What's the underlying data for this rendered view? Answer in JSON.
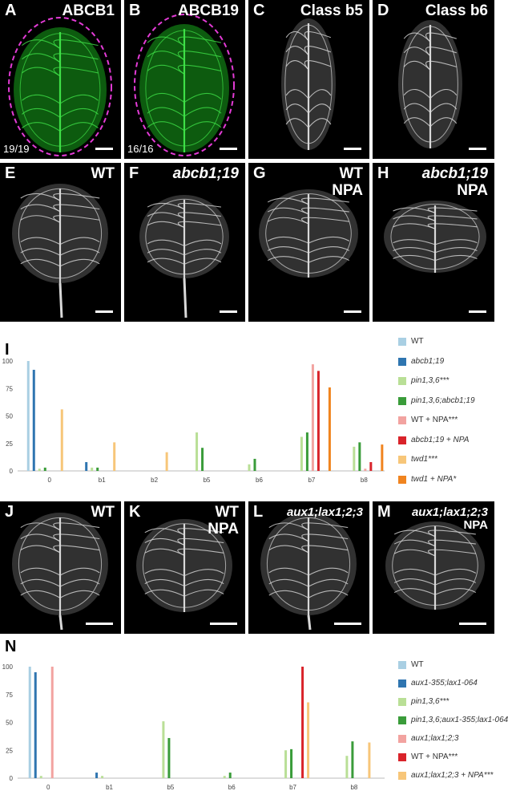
{
  "panels": [
    {
      "key": "A",
      "label": "A",
      "title": "ABCB1",
      "count": "19/19",
      "kind": "green"
    },
    {
      "key": "B",
      "label": "B",
      "title": "ABCB19",
      "count": "16/16",
      "kind": "green"
    },
    {
      "key": "C",
      "label": "C",
      "title": "Class b5",
      "kind": "gray"
    },
    {
      "key": "D",
      "label": "D",
      "title": "Class b6",
      "kind": "gray"
    },
    {
      "key": "E",
      "label": "E",
      "title": "WT",
      "kind": "gray"
    },
    {
      "key": "F",
      "label": "F",
      "title": "abcb1;19",
      "kind": "gray"
    },
    {
      "key": "G",
      "label": "G",
      "title": "WT",
      "title2": "NPA",
      "kind": "gray"
    },
    {
      "key": "H",
      "label": "H",
      "title": "abcb1;19",
      "title2": "NPA",
      "kind": "gray"
    },
    {
      "key": "J",
      "label": "J",
      "title": "WT",
      "kind": "gray"
    },
    {
      "key": "K",
      "label": "K",
      "title": "WT",
      "title2": "NPA",
      "kind": "gray"
    },
    {
      "key": "L",
      "label": "L",
      "title": "aux1;lax1;2;3",
      "kind": "gray"
    },
    {
      "key": "M",
      "label": "M",
      "title": "aux1;lax1;2;3",
      "title2": "NPA",
      "kind": "gray"
    }
  ],
  "chart_labels": {
    "I": "I",
    "N": "N"
  },
  "chart_data": [
    {
      "type": "bar",
      "categories": [
        "0",
        "b1",
        "b2",
        "b5",
        "b6",
        "b7",
        "b8"
      ],
      "yticks": [
        "0",
        "25",
        "50",
        "75",
        "100"
      ],
      "ylim": [
        0,
        100
      ],
      "series": [
        {
          "name": "WT",
          "color": "#a9cfe3",
          "values": [
            100,
            0,
            0,
            0,
            0,
            0,
            0
          ]
        },
        {
          "name": "abcb1;19",
          "color": "#2f75b0",
          "values": [
            92,
            8,
            0,
            0,
            0,
            0,
            0
          ]
        },
        {
          "name": "pin1,3,6***",
          "color": "#b9df96",
          "values": [
            2,
            3,
            0,
            35,
            6,
            31,
            22
          ]
        },
        {
          "name": "pin1,3,6;abcb1;19",
          "color": "#3a9c3a",
          "values": [
            3,
            3,
            0,
            21,
            11,
            35,
            26
          ]
        },
        {
          "name": "WT + NPA***",
          "color": "#f2a3a0",
          "values": [
            0,
            0,
            0,
            0,
            0,
            97,
            2
          ]
        },
        {
          "name": "abcb1;19 + NPA",
          "color": "#d9232a",
          "values": [
            0,
            0,
            0,
            0,
            0,
            91,
            8
          ]
        },
        {
          "name": "twd1***",
          "color": "#f7c679",
          "values": [
            56,
            26,
            17,
            0,
            0,
            0,
            0
          ]
        },
        {
          "name": "twd1 + NPA*",
          "color": "#f0841f",
          "values": [
            0,
            0,
            0,
            0,
            0,
            76,
            24
          ]
        }
      ]
    },
    {
      "type": "bar",
      "categories": [
        "0",
        "b1",
        "b5",
        "b6",
        "b7",
        "b8"
      ],
      "yticks": [
        "0",
        "25",
        "50",
        "75",
        "100"
      ],
      "ylim": [
        0,
        100
      ],
      "series": [
        {
          "name": "WT",
          "color": "#a9cfe3",
          "values": [
            100,
            0,
            0,
            0,
            0,
            0
          ]
        },
        {
          "name": "aux1-355;lax1-064",
          "color": "#2f75b0",
          "values": [
            95,
            5,
            0,
            0,
            0,
            0
          ]
        },
        {
          "name": "pin1,3,6***",
          "color": "#b9df96",
          "values": [
            2,
            2,
            51,
            2,
            25,
            20
          ]
        },
        {
          "name": "pin1,3,6;aux1-355;lax1-064",
          "color": "#3a9c3a",
          "values": [
            0,
            0,
            36,
            5,
            26,
            33
          ]
        },
        {
          "name": "aux1;lax1;2;3",
          "color": "#f2a3a0",
          "values": [
            100,
            0,
            0,
            0,
            0,
            0
          ]
        },
        {
          "name": "WT + NPA***",
          "color": "#d9232a",
          "values": [
            0,
            0,
            0,
            0,
            100,
            0
          ]
        },
        {
          "name": "aux1;lax1;2;3 + NPA***",
          "color": "#f7c679",
          "values": [
            0,
            0,
            0,
            0,
            68,
            32
          ]
        }
      ]
    }
  ]
}
